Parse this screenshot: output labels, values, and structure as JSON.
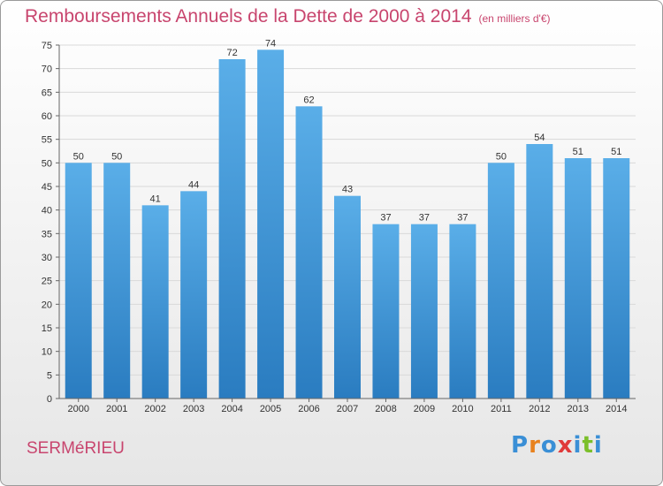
{
  "header": {
    "title": "Remboursements Annuels de la Dette de 2000 à 2014",
    "unit": "(en milliers d'€)"
  },
  "footer": {
    "town": "SERMéRIEU",
    "brand": "Proxiti",
    "brand_colors": [
      "#3a8fd6",
      "#e8821e",
      "#3a8fd6",
      "#e03a3a",
      "#3a8fd6",
      "#7bbf2a",
      "#3a8fd6"
    ]
  },
  "chart_data": {
    "type": "bar",
    "categories": [
      "2000",
      "2001",
      "2002",
      "2003",
      "2004",
      "2005",
      "2006",
      "2007",
      "2008",
      "2009",
      "2010",
      "2011",
      "2012",
      "2013",
      "2014"
    ],
    "values": [
      50,
      50,
      41,
      44,
      72,
      74,
      62,
      43,
      37,
      37,
      37,
      50,
      54,
      51,
      51
    ],
    "title": "Remboursements Annuels de la Dette de 2000 à 2014",
    "xlabel": "",
    "ylabel": "",
    "ylim": [
      0,
      75
    ],
    "yticks": [
      0,
      5,
      10,
      15,
      20,
      25,
      30,
      35,
      40,
      45,
      50,
      55,
      60,
      65,
      70,
      75
    ],
    "grid": true,
    "bar_color_top": "#5aaee8",
    "bar_color_bottom": "#2a7cc0",
    "grid_color": "#d9d9d9"
  }
}
